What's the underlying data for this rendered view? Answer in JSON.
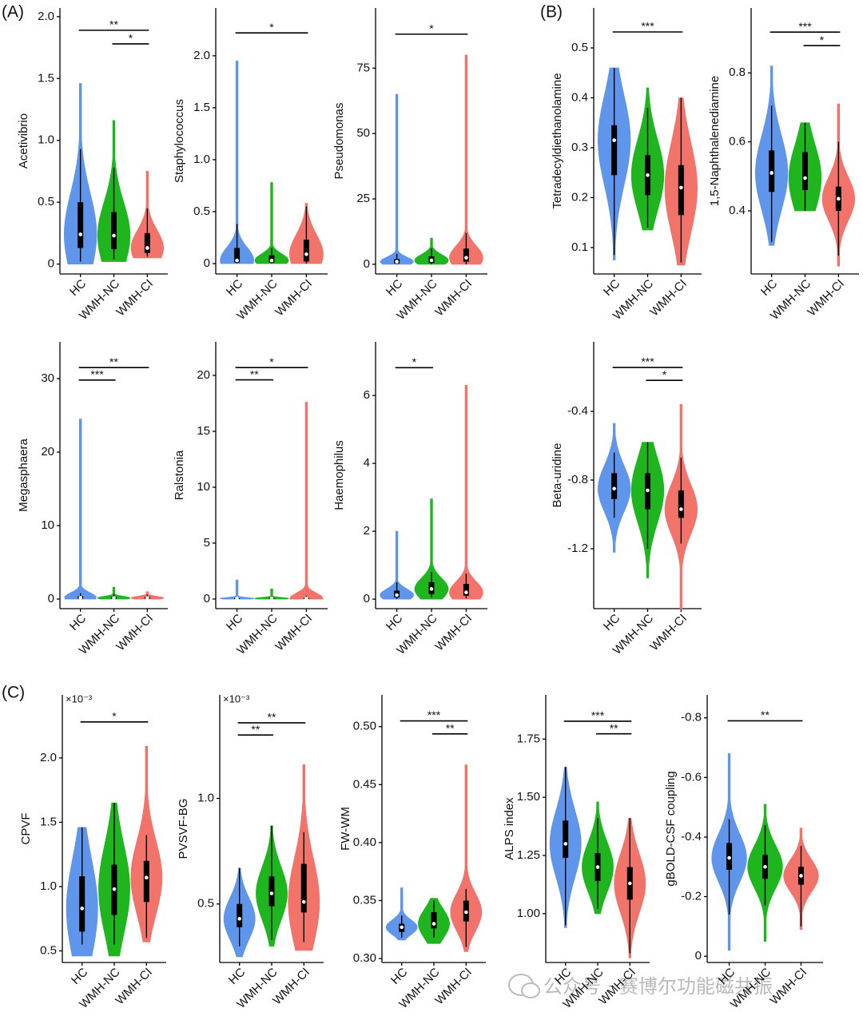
{
  "panel_labels": [
    "(A)",
    "(B)",
    "(C)"
  ],
  "watermark": "公众号 · 赛博尔功能磁共振",
  "chart_data": [
    {
      "type": "violin",
      "ylabel": "Acetivibrio",
      "categories": [
        "HC",
        "WMH-NC",
        "WMH-CI"
      ],
      "ylim": [
        -0.08,
        2.07
      ],
      "yticks": [
        0,
        0.5,
        {
          "value": 1,
          "label": "1.0"
        },
        1.5,
        {
          "value": 2,
          "label": "2.0"
        }
      ],
      "brackets": [
        {
          "from": 0,
          "to": 2,
          "y": 1.89,
          "label": "**"
        },
        {
          "from": 1,
          "to": 2,
          "y": 1.78,
          "label": "*"
        }
      ],
      "groups": [
        {
          "color": "#5f95ea",
          "min": 0,
          "lo": 0.02,
          "q1": 0.13,
          "median": 0.24,
          "q3": 0.5,
          "hi": 0.93,
          "max": 1.46
        },
        {
          "color": "#1fb51f",
          "min": 0.02,
          "lo": 0.04,
          "q1": 0.12,
          "median": 0.23,
          "q3": 0.42,
          "hi": 0.78,
          "max": 1.16
        },
        {
          "color": "#f1736a",
          "min": 0.05,
          "lo": 0.06,
          "q1": 0.09,
          "median": 0.13,
          "q3": 0.25,
          "hi": 0.45,
          "max": 0.75
        }
      ]
    },
    {
      "type": "violin",
      "ylabel": "Staphylococcus",
      "categories": [
        "HC",
        "WMH-NC",
        "WMH-CI"
      ],
      "ylim": [
        -0.1,
        2.46
      ],
      "yticks": [
        0,
        0.5,
        {
          "value": 1,
          "label": "1.0"
        },
        1.5,
        {
          "value": 2,
          "label": "2.0"
        }
      ],
      "brackets": [
        {
          "from": 0,
          "to": 2,
          "y": 2.22,
          "label": "*"
        }
      ],
      "groups": [
        {
          "color": "#5f95ea",
          "min": 0,
          "lo": 0,
          "q1": 0.01,
          "median": 0.03,
          "q3": 0.15,
          "hi": 0.38,
          "max": 1.95
        },
        {
          "color": "#1fb51f",
          "min": 0,
          "lo": 0,
          "q1": 0.01,
          "median": 0.03,
          "q3": 0.08,
          "hi": 0.15,
          "max": 0.78
        },
        {
          "color": "#f1736a",
          "min": 0,
          "lo": 0,
          "q1": 0.02,
          "median": 0.09,
          "q3": 0.23,
          "hi": 0.55,
          "max": 0.58
        }
      ]
    },
    {
      "type": "violin",
      "ylabel": "Pseudomonas",
      "categories": [
        "HC",
        "WMH-NC",
        "WMH-CI"
      ],
      "ylim": [
        -3.7,
        98
      ],
      "yticks": [
        0,
        25,
        50,
        75
      ],
      "brackets": [
        {
          "from": 0,
          "to": 2,
          "y": 88,
          "label": "*"
        }
      ],
      "groups": [
        {
          "color": "#5f95ea",
          "min": 0,
          "lo": 0,
          "q1": 0.3,
          "median": 1,
          "q3": 2,
          "hi": 4,
          "max": 65
        },
        {
          "color": "#1fb51f",
          "min": 0,
          "lo": 0,
          "q1": 0.5,
          "median": 1.5,
          "q3": 3,
          "hi": 6,
          "max": 10
        },
        {
          "color": "#f1736a",
          "min": 0,
          "lo": 0,
          "q1": 1,
          "median": 2.5,
          "q3": 6,
          "hi": 12,
          "max": 80
        }
      ]
    },
    {
      "type": "violin",
      "ylabel": "Tetradecyldiethanolamine",
      "categories": [
        "HC",
        "WMH-NC",
        "WMH-CI"
      ],
      "ylim": [
        0.047,
        0.58
      ],
      "yticks": [
        0.1,
        0.2,
        0.3,
        0.4,
        0.5
      ],
      "brackets": [
        {
          "from": 0,
          "to": 2,
          "y": 0.532,
          "label": "***"
        }
      ],
      "groups": [
        {
          "color": "#5f95ea",
          "min": 0.075,
          "lo": 0.085,
          "q1": 0.245,
          "median": 0.315,
          "q3": 0.345,
          "hi": 0.46,
          "max": 0.46
        },
        {
          "color": "#1fb51f",
          "min": 0.135,
          "lo": 0.14,
          "q1": 0.205,
          "median": 0.245,
          "q3": 0.285,
          "hi": 0.38,
          "max": 0.42
        },
        {
          "color": "#f1736a",
          "min": 0.065,
          "lo": 0.07,
          "q1": 0.165,
          "median": 0.22,
          "q3": 0.265,
          "hi": 0.4,
          "max": 0.4
        }
      ]
    },
    {
      "type": "violin",
      "ylabel": "1,5-Naphthalenediamine",
      "categories": [
        "HC",
        "WMH-NC",
        "WMH-CI"
      ],
      "ylim": [
        0.217,
        0.988
      ],
      "yticks": [
        0.4,
        0.6,
        0.8
      ],
      "brackets": [
        {
          "from": 0,
          "to": 2,
          "y": 0.918,
          "label": "***"
        },
        {
          "from": 1,
          "to": 2,
          "y": 0.879,
          "label": "*"
        }
      ],
      "groups": [
        {
          "color": "#5f95ea",
          "min": 0.3,
          "lo": 0.31,
          "q1": 0.455,
          "median": 0.51,
          "q3": 0.575,
          "hi": 0.705,
          "max": 0.82
        },
        {
          "color": "#1fb51f",
          "min": 0.4,
          "lo": 0.4,
          "q1": 0.46,
          "median": 0.495,
          "q3": 0.57,
          "hi": 0.655,
          "max": 0.655
        },
        {
          "color": "#f1736a",
          "min": 0.24,
          "lo": 0.27,
          "q1": 0.4,
          "median": 0.435,
          "q3": 0.47,
          "hi": 0.6,
          "max": 0.71
        }
      ]
    },
    {
      "type": "violin",
      "ylabel": "Megasphaera",
      "categories": [
        "HC",
        "WMH-NC",
        "WMH-CI"
      ],
      "ylim": [
        -1.3,
        35
      ],
      "yticks": [
        0,
        10,
        20,
        30
      ],
      "brackets": [
        {
          "from": 0,
          "to": 2,
          "y": 31.5,
          "label": "**"
        },
        {
          "from": 0,
          "to": 1,
          "y": 29.8,
          "label": "***"
        }
      ],
      "groups": [
        {
          "color": "#5f95ea",
          "min": 0,
          "lo": 0,
          "q1": 0.05,
          "median": 0.2,
          "q3": 0.4,
          "hi": 0.8,
          "max": 24.5
        },
        {
          "color": "#1fb51f",
          "min": 0,
          "lo": 0,
          "q1": 0.05,
          "median": 0.15,
          "q3": 0.3,
          "hi": 0.7,
          "max": 1.6
        },
        {
          "color": "#f1736a",
          "min": 0,
          "lo": 0,
          "q1": 0.05,
          "median": 0.15,
          "q3": 0.3,
          "hi": 0.6,
          "max": 1
        }
      ]
    },
    {
      "type": "violin",
      "ylabel": "Ralstonia",
      "categories": [
        "HC",
        "WMH-NC",
        "WMH-CI"
      ],
      "ylim": [
        -0.86,
        23
      ],
      "yticks": [
        0,
        5,
        10,
        15,
        20
      ],
      "brackets": [
        {
          "from": 0,
          "to": 2,
          "y": 20.7,
          "label": "*"
        },
        {
          "from": 0,
          "to": 1,
          "y": 19.6,
          "label": "**"
        }
      ],
      "groups": [
        {
          "color": "#5f95ea",
          "min": 0,
          "lo": 0,
          "q1": 0,
          "median": 0.05,
          "q3": 0.1,
          "hi": 0.2,
          "max": 1.7
        },
        {
          "color": "#1fb51f",
          "min": 0,
          "lo": 0,
          "q1": 0,
          "median": 0.05,
          "q3": 0.1,
          "hi": 0.2,
          "max": 0.9
        },
        {
          "color": "#f1736a",
          "min": 0,
          "lo": 0,
          "q1": 0,
          "median": 0.05,
          "q3": 0.1,
          "hi": 0.3,
          "max": 17.6
        }
      ]
    },
    {
      "type": "violin",
      "ylabel": "Haemophilus",
      "categories": [
        "HC",
        "WMH-NC",
        "WMH-CI"
      ],
      "ylim": [
        -0.28,
        7.58
      ],
      "yticks": [
        0,
        2,
        4,
        6
      ],
      "brackets": [
        {
          "from": 0,
          "to": 1,
          "y": 6.82,
          "label": "*"
        }
      ],
      "groups": [
        {
          "color": "#5f95ea",
          "min": 0,
          "lo": 0,
          "q1": 0.05,
          "median": 0.12,
          "q3": 0.25,
          "hi": 0.5,
          "max": 2
        },
        {
          "color": "#1fb51f",
          "min": 0,
          "lo": 0.05,
          "q1": 0.15,
          "median": 0.3,
          "q3": 0.5,
          "hi": 0.8,
          "max": 2.95
        },
        {
          "color": "#f1736a",
          "min": 0,
          "lo": 0.02,
          "q1": 0.1,
          "median": 0.2,
          "q3": 0.45,
          "hi": 0.75,
          "max": 6.3
        }
      ]
    },
    {
      "type": "violin",
      "ylabel": "Beta-uridine",
      "categories": [
        "HC",
        "WMH-NC",
        "WMH-CI"
      ],
      "ylim": [
        -1.549,
        0.005
      ],
      "yticks": [
        -0.4,
        -0.8,
        -1.2
      ],
      "brackets": [
        {
          "from": 0,
          "to": 2,
          "y": -0.144,
          "label": "***"
        },
        {
          "from": 1,
          "to": 2,
          "y": -0.219,
          "label": "*"
        }
      ],
      "groups": [
        {
          "color": "#5f95ea",
          "min": -1.22,
          "lo": -1.02,
          "q1": -0.91,
          "median": -0.85,
          "q3": -0.76,
          "hi": -0.64,
          "max": -0.47
        },
        {
          "color": "#1fb51f",
          "min": -1.37,
          "lo": -1.2,
          "q1": -0.97,
          "median": -0.86,
          "q3": -0.76,
          "hi": -0.58,
          "max": -0.58
        },
        {
          "color": "#f1736a",
          "min": -1.55,
          "lo": -1.17,
          "q1": -1.02,
          "median": -0.97,
          "q3": -0.86,
          "hi": -0.67,
          "max": -0.36
        }
      ]
    },
    {
      "type": "violin",
      "ylabel": "CPVF",
      "axis_multiplier": "×10⁻³",
      "categories": [
        "HC",
        "WMH-NC",
        "WMH-CI"
      ],
      "ylim": [
        0.41,
        2.49
      ],
      "yticks": [
        0.5,
        {
          "value": 1,
          "label": "1.0"
        },
        1.5,
        {
          "value": 2,
          "label": "2.0"
        }
      ],
      "brackets": [
        {
          "from": 0,
          "to": 2,
          "y": 2.28,
          "label": "*"
        }
      ],
      "groups": [
        {
          "color": "#5f95ea",
          "min": 0.46,
          "lo": 0.55,
          "q1": 0.65,
          "median": 0.83,
          "q3": 1.08,
          "hi": 1.46,
          "max": 1.46
        },
        {
          "color": "#1fb51f",
          "min": 0.46,
          "lo": 0.55,
          "q1": 0.78,
          "median": 0.98,
          "q3": 1.17,
          "hi": 1.65,
          "max": 1.65
        },
        {
          "color": "#f1736a",
          "min": 0.57,
          "lo": 0.6,
          "q1": 0.88,
          "median": 1.07,
          "q3": 1.2,
          "hi": 1.4,
          "max": 2.09
        }
      ]
    },
    {
      "type": "violin",
      "ylabel": "PVSVF-BG",
      "axis_multiplier": "×10⁻³",
      "categories": [
        "HC",
        "WMH-NC",
        "WMH-CI"
      ],
      "ylim": [
        0.223,
        1.49
      ],
      "yticks": [
        0.5,
        {
          "value": 1,
          "label": "1.0"
        }
      ],
      "brackets": [
        {
          "from": 0,
          "to": 2,
          "y": 1.358,
          "label": "**"
        },
        {
          "from": 0,
          "to": 1,
          "y": 1.3,
          "label": "**"
        }
      ],
      "groups": [
        {
          "color": "#5f95ea",
          "min": 0.25,
          "lo": 0.3,
          "q1": 0.39,
          "median": 0.43,
          "q3": 0.5,
          "hi": 0.67,
          "max": 0.67
        },
        {
          "color": "#1fb51f",
          "min": 0.3,
          "lo": 0.33,
          "q1": 0.49,
          "median": 0.55,
          "q3": 0.63,
          "hi": 0.87,
          "max": 0.87
        },
        {
          "color": "#f1736a",
          "min": 0.28,
          "lo": 0.32,
          "q1": 0.46,
          "median": 0.51,
          "q3": 0.69,
          "hi": 0.84,
          "max": 1.16
        }
      ]
    },
    {
      "type": "violin",
      "ylabel": "FW-WM",
      "categories": [
        "HC",
        "WMH-NC",
        "WMH-CI"
      ],
      "ylim": [
        0.2966,
        0.5274
      ],
      "yticks": [
        {
          "value": 0.3,
          "label": "0.30"
        },
        0.35,
        {
          "value": 0.4,
          "label": "0.40"
        },
        0.45,
        {
          "value": 0.5,
          "label": "0.50"
        }
      ],
      "brackets": [
        {
          "from": 0,
          "to": 2,
          "y": 0.505,
          "label": "***"
        },
        {
          "from": 1,
          "to": 2,
          "y": 0.4938,
          "label": "**"
        }
      ],
      "groups": [
        {
          "color": "#5f95ea",
          "min": 0.316,
          "lo": 0.318,
          "q1": 0.323,
          "median": 0.327,
          "q3": 0.33,
          "hi": 0.337,
          "max": 0.361
        },
        {
          "color": "#1fb51f",
          "min": 0.313,
          "lo": 0.318,
          "q1": 0.326,
          "median": 0.33,
          "q3": 0.34,
          "hi": 0.35,
          "max": 0.352
        },
        {
          "color": "#f1736a",
          "min": 0.306,
          "lo": 0.31,
          "q1": 0.332,
          "median": 0.34,
          "q3": 0.35,
          "hi": 0.36,
          "max": 0.467
        }
      ]
    },
    {
      "type": "violin",
      "ylabel": "ALPS index",
      "categories": [
        "HC",
        "WMH-NC",
        "WMH-CI"
      ],
      "ylim": [
        0.79,
        1.94
      ],
      "yticks": [
        {
          "value": 1,
          "label": "1.00"
        },
        1.25,
        {
          "value": 1.5,
          "label": "1.50"
        },
        1.75
      ],
      "brackets": [
        {
          "from": 0,
          "to": 2,
          "y": 1.827,
          "label": "***"
        },
        {
          "from": 1,
          "to": 2,
          "y": 1.773,
          "label": "**"
        }
      ],
      "groups": [
        {
          "color": "#5f95ea",
          "min": 0.94,
          "lo": 0.95,
          "q1": 1.24,
          "median": 1.3,
          "q3": 1.4,
          "hi": 1.63,
          "max": 1.63
        },
        {
          "color": "#1fb51f",
          "min": 1,
          "lo": 1.02,
          "q1": 1.14,
          "median": 1.2,
          "q3": 1.26,
          "hi": 1.41,
          "max": 1.48
        },
        {
          "color": "#f1736a",
          "min": 0.81,
          "lo": 0.83,
          "q1": 1.06,
          "median": 1.13,
          "q3": 1.2,
          "hi": 1.41,
          "max": 1.41
        }
      ]
    },
    {
      "type": "violin",
      "ylabel": "gBOLD-CSF coupling",
      "categories": [
        "HC",
        "WMH-NC",
        "WMH-CI"
      ],
      "ylim": [
        0.021,
        -0.877
      ],
      "yticks": [
        0,
        -0.2,
        -0.4,
        -0.6,
        -0.8
      ],
      "brackets": [
        {
          "from": 0,
          "to": 2,
          "y": -0.79,
          "label": "**"
        }
      ],
      "groups": [
        {
          "color": "#5f95ea",
          "min": -0.68,
          "lo": -0.46,
          "q1": -0.38,
          "median": -0.33,
          "q3": -0.29,
          "hi": -0.14,
          "max": -0.02
        },
        {
          "color": "#1fb51f",
          "min": -0.51,
          "lo": -0.44,
          "q1": -0.34,
          "median": -0.3,
          "q3": -0.26,
          "hi": -0.17,
          "max": -0.05
        },
        {
          "color": "#f1736a",
          "min": -0.43,
          "lo": -0.37,
          "q1": -0.3,
          "median": -0.27,
          "q3": -0.24,
          "hi": -0.1,
          "max": -0.09
        }
      ]
    }
  ]
}
